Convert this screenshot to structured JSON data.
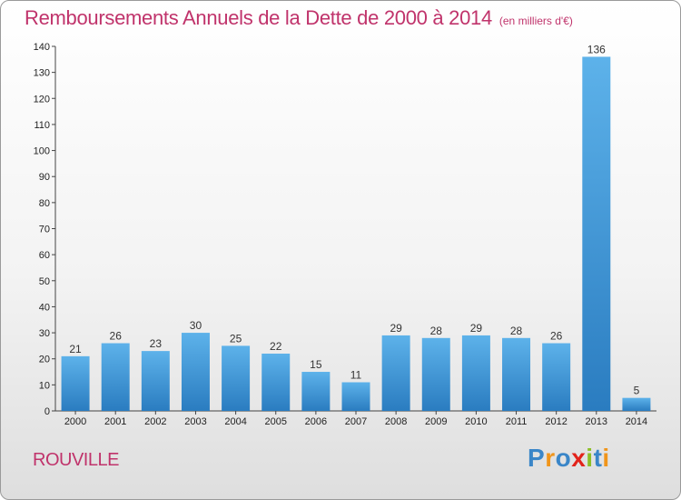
{
  "header": {
    "title": "Remboursements Annuels de la Dette de 2000 à 2014",
    "unit": "(en milliers d'€)"
  },
  "footer": {
    "commune": "ROUVILLE",
    "logo_text": "Proxiti"
  },
  "colors": {
    "title": "#c0336b",
    "bar_top": "#5db2ea",
    "bar_bottom": "#2a7cc0",
    "logo": [
      "#3a86c8",
      "#f0951b",
      "#3a86c8",
      "#e2231a",
      "#8cbf26",
      "#3a86c8",
      "#f0951b"
    ]
  },
  "chart_data": {
    "type": "bar",
    "categories": [
      "2000",
      "2001",
      "2002",
      "2003",
      "2004",
      "2005",
      "2006",
      "2007",
      "2008",
      "2009",
      "2010",
      "2011",
      "2012",
      "2013",
      "2014"
    ],
    "values": [
      21,
      26,
      23,
      30,
      25,
      22,
      15,
      11,
      29,
      28,
      29,
      28,
      26,
      136,
      5
    ],
    "ylim": [
      0,
      140
    ],
    "yticks": [
      0,
      10,
      20,
      30,
      40,
      50,
      60,
      70,
      80,
      90,
      100,
      110,
      120,
      130,
      140
    ],
    "grid": false,
    "data_labels": true
  }
}
